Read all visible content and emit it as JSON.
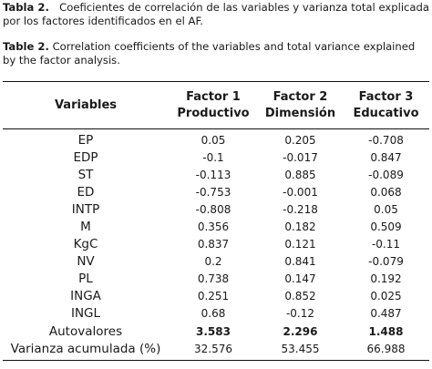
{
  "caption_es": {
    "label": "Tabla 2.",
    "text": "Coeficientes de correlación de las variables y varianza total explicada por los factores identificados en el AF."
  },
  "caption_en": {
    "label": "Table 2.",
    "text": "Correlation coefficients of the variables and total variance explained by the factor analysis."
  },
  "table": {
    "headers": [
      {
        "line1": "Variables",
        "line2": ""
      },
      {
        "line1": "Factor 1",
        "line2": "Productivo"
      },
      {
        "line1": "Factor 2",
        "line2": "Dimensión"
      },
      {
        "line1": "Factor 3",
        "line2": "Educativo"
      }
    ],
    "rows": [
      {
        "var": "EP",
        "f1": "0.05",
        "f2": "0.205",
        "f3": "-0.708"
      },
      {
        "var": "EDP",
        "f1": "-0.1",
        "f2": "-0.017",
        "f3": "0.847"
      },
      {
        "var": "ST",
        "f1": "-0.113",
        "f2": "0.885",
        "f3": "-0.089"
      },
      {
        "var": "ED",
        "f1": "-0.753",
        "f2": "-0.001",
        "f3": "0.068"
      },
      {
        "var": "INTP",
        "f1": "-0.808",
        "f2": "-0.218",
        "f3": "0.05"
      },
      {
        "var": "M",
        "f1": "0.356",
        "f2": "0.182",
        "f3": "0.509"
      },
      {
        "var": "KgC",
        "f1": "0.837",
        "f2": "0.121",
        "f3": "-0.11"
      },
      {
        "var": "NV",
        "f1": "0.2",
        "f2": "0.841",
        "f3": "-0.079"
      },
      {
        "var": "PL",
        "f1": "0.738",
        "f2": "0.147",
        "f3": "0.192"
      },
      {
        "var": "INGA",
        "f1": "0.251",
        "f2": "0.852",
        "f3": "0.025"
      },
      {
        "var": "INGL",
        "f1": "0.68",
        "f2": "-0.12",
        "f3": "0.487"
      }
    ],
    "eigen": {
      "var": "Autovalores",
      "f1": "3.583",
      "f2": "2.296",
      "f3": "1.488"
    },
    "cumvar": {
      "var": "Varianza acumulada (%)",
      "f1": "32.576",
      "f2": "53.455",
      "f3": "66.988"
    }
  }
}
